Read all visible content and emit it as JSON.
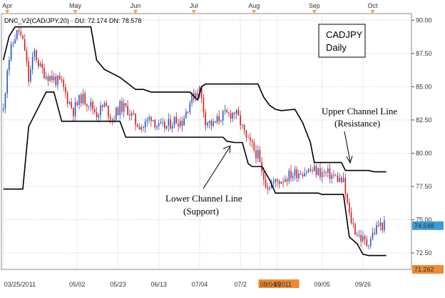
{
  "chart_data": {
    "type": "candlestick",
    "indicator_label": "DNC_V2(CAD/JPY,20) · DU: 72.174 DN: 78.578",
    "title_box": [
      "CADJPY",
      "Daily"
    ],
    "y_ticks": [
      "90.00",
      "87.50",
      "85.00",
      "82.50",
      "80.00",
      "77.50",
      "75.00",
      "72.50"
    ],
    "ylim": [
      71.26,
      90.5
    ],
    "x_ticks": [
      {
        "label": "03/25/2011",
        "day": 0
      },
      {
        "label": "05/02",
        "day": 38
      },
      {
        "label": "05/23",
        "day": 59
      },
      {
        "label": "06/13",
        "day": 80
      },
      {
        "label": "07/04",
        "day": 101
      },
      {
        "label": "07/2",
        "day": 122
      },
      {
        "label": "08/04/2011",
        "day": 132,
        "highlight": true
      },
      {
        "label": "15",
        "day": 141
      },
      {
        "label": "09/05",
        "day": 164
      },
      {
        "label": "09/26",
        "day": 185
      }
    ],
    "months": [
      {
        "label": "Apr",
        "day": 2
      },
      {
        "label": "May",
        "day": 37
      },
      {
        "label": "Jun",
        "day": 68
      },
      {
        "label": "Jul",
        "day": 98
      },
      {
        "label": "Aug",
        "day": 129
      },
      {
        "label": "Sep",
        "day": 160
      },
      {
        "label": "Oct",
        "day": 190
      }
    ],
    "xlim": [
      -1,
      210
    ],
    "price_tags": [
      {
        "label": "74.548",
        "value": 74.55,
        "color": "#3b9bd8"
      },
      {
        "label": "71.262",
        "value": 71.26,
        "color": "#f08a30"
      }
    ],
    "upper_channel": [
      [
        0,
        87.0
      ],
      [
        3,
        88.8
      ],
      [
        6,
        89.5
      ],
      [
        45,
        89.5
      ],
      [
        48,
        87.0
      ],
      [
        52,
        86.3
      ],
      [
        60,
        85.7
      ],
      [
        68,
        84.8
      ],
      [
        72,
        84.8
      ],
      [
        76,
        84.6
      ],
      [
        96,
        84.6
      ],
      [
        100,
        84.0
      ],
      [
        102,
        85.0
      ],
      [
        104,
        85.2
      ],
      [
        131,
        85.2
      ],
      [
        134,
        84.2
      ],
      [
        137,
        83.6
      ],
      [
        140,
        83.3
      ],
      [
        143,
        83.2
      ],
      [
        150,
        83.3
      ],
      [
        154,
        82.3
      ],
      [
        158,
        80.8
      ],
      [
        160,
        79.3
      ],
      [
        174,
        79.3
      ],
      [
        176,
        78.7
      ],
      [
        188,
        78.7
      ],
      [
        191,
        78.6
      ],
      [
        197,
        78.6
      ]
    ],
    "lower_channel": [
      [
        0,
        77.3
      ],
      [
        10,
        77.3
      ],
      [
        13,
        82.0
      ],
      [
        22,
        84.6
      ],
      [
        26,
        84.6
      ],
      [
        30,
        82.4
      ],
      [
        60,
        82.4
      ],
      [
        63,
        81.2
      ],
      [
        113,
        81.2
      ],
      [
        115,
        80.9
      ],
      [
        119,
        80.8
      ],
      [
        123,
        80.8
      ],
      [
        126,
        79.2
      ],
      [
        128,
        79.0
      ],
      [
        133,
        79.0
      ],
      [
        137,
        78.0
      ],
      [
        140,
        77.0
      ],
      [
        162,
        77.0
      ],
      [
        164,
        76.9
      ],
      [
        175,
        76.9
      ],
      [
        178,
        73.7
      ],
      [
        182,
        73.2
      ],
      [
        185,
        72.4
      ],
      [
        188,
        72.3
      ],
      [
        197,
        72.3
      ]
    ],
    "anchors": [
      [
        0,
        83.2
      ],
      [
        2,
        86.5
      ],
      [
        4,
        87.8
      ],
      [
        6,
        88.8
      ],
      [
        8,
        89.2
      ],
      [
        11,
        87.8
      ],
      [
        13,
        85.5
      ],
      [
        16,
        87.6
      ],
      [
        19,
        86.4
      ],
      [
        22,
        85.9
      ],
      [
        26,
        85.6
      ],
      [
        30,
        85.2
      ],
      [
        33,
        84.1
      ],
      [
        36,
        83.2
      ],
      [
        40,
        84.2
      ],
      [
        44,
        83.8
      ],
      [
        48,
        83.0
      ],
      [
        52,
        83.6
      ],
      [
        56,
        82.6
      ],
      [
        60,
        83.5
      ],
      [
        64,
        83.3
      ],
      [
        68,
        82.3
      ],
      [
        72,
        82.0
      ],
      [
        76,
        82.8
      ],
      [
        80,
        81.9
      ],
      [
        84,
        82.0
      ],
      [
        88,
        82.5
      ],
      [
        92,
        82.4
      ],
      [
        96,
        83.9
      ],
      [
        99,
        84.6
      ],
      [
        101,
        84.8
      ],
      [
        104,
        82.5
      ],
      [
        108,
        82.1
      ],
      [
        112,
        82.8
      ],
      [
        116,
        82.9
      ],
      [
        119,
        83.1
      ],
      [
        122,
        82.3
      ],
      [
        125,
        81.0
      ],
      [
        128,
        80.5
      ],
      [
        131,
        79.8
      ],
      [
        133,
        78.4
      ],
      [
        136,
        77.6
      ],
      [
        140,
        77.8
      ],
      [
        144,
        78.1
      ],
      [
        148,
        78.4
      ],
      [
        152,
        78.6
      ],
      [
        156,
        78.7
      ],
      [
        160,
        78.7
      ],
      [
        164,
        78.5
      ],
      [
        168,
        78.4
      ],
      [
        172,
        78.1
      ],
      [
        175,
        77.8
      ],
      [
        178,
        75.3
      ],
      [
        181,
        74.2
      ],
      [
        184,
        73.6
      ],
      [
        187,
        73.2
      ],
      [
        190,
        73.9
      ],
      [
        193,
        74.6
      ],
      [
        196,
        74.55
      ]
    ],
    "annotations": [
      {
        "lines": [
          "Upper Channel Line",
          "(Resistance)"
        ]
      },
      {
        "lines": [
          "Lower Channel Line",
          "(Support)"
        ]
      }
    ],
    "colors": {
      "up": "#1f56c9",
      "down": "#d11a1a",
      "channel": "#000000",
      "frame": "#8a8a8a",
      "grid": "#b9c3cf",
      "tick_highlight": "#f08a30",
      "marker": "#f0a030"
    }
  }
}
